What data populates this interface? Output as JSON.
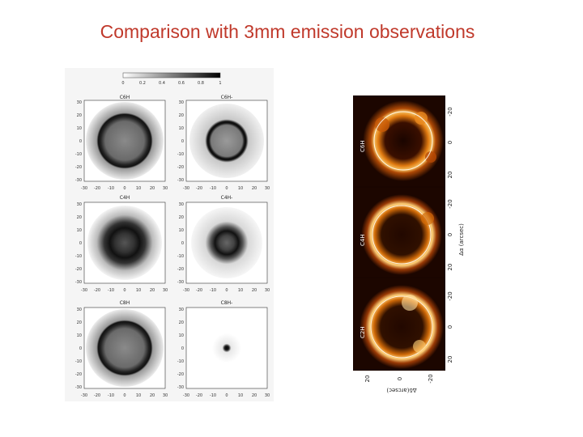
{
  "slide": {
    "title": "Comparison with 3mm emission observations"
  },
  "simulation_figure": {
    "colorbar_ticks": [
      "0",
      "0.2",
      "0.4",
      "0.6",
      "0.8",
      "1"
    ],
    "axis_ticks": [
      "30",
      "20",
      "10",
      "0",
      "-10",
      "-20",
      "-30"
    ],
    "x_ticks": [
      "-30",
      "-20",
      "-10",
      "0",
      "10",
      "20",
      "30"
    ],
    "panels": [
      {
        "label": "C6H"
      },
      {
        "label": "C6H-"
      },
      {
        "label": "C4H"
      },
      {
        "label": "C4H-"
      },
      {
        "label": "C8H"
      },
      {
        "label": "C8H-"
      }
    ]
  },
  "observation_figure": {
    "panels": [
      {
        "label": "C6H"
      },
      {
        "label": "C4H"
      },
      {
        "label": "C2H"
      }
    ],
    "right_ticks": [
      "-20",
      "0",
      "20"
    ],
    "right_axis_label": "Δα (arcsec)",
    "bottom_ticks": [
      "20",
      "0",
      "-20"
    ],
    "bottom_axis_label": "Δδ(arcsec)"
  }
}
